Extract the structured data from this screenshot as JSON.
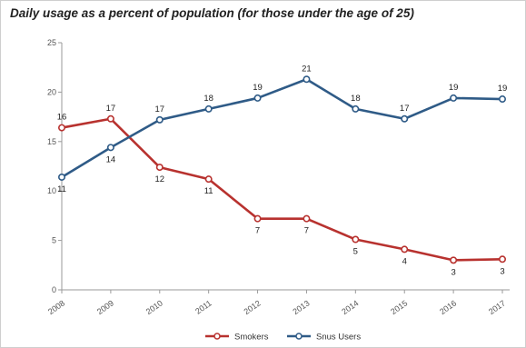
{
  "chart_data": {
    "type": "line",
    "title": "Daily usage as a percent of population (for those under the age of 25)",
    "x": [
      "2008",
      "2009",
      "2010",
      "2011",
      "2012",
      "2013",
      "2014",
      "2015",
      "2016",
      "2017"
    ],
    "ylim": [
      0,
      25
    ],
    "yticks": [
      0,
      5,
      10,
      15,
      20,
      25
    ],
    "grid": false,
    "legend_position": "bottom-center",
    "series": [
      {
        "name": "Smokers",
        "color": "#b8322f",
        "values": [
          16.4,
          17.3,
          12.4,
          11.2,
          7.2,
          7.2,
          5.1,
          4.1,
          3.0,
          3.1
        ],
        "labels": [
          "16",
          "17",
          "12",
          "11",
          "7",
          "7",
          "5",
          "4",
          "3",
          "3"
        ]
      },
      {
        "name": "Snus Users",
        "color": "#2f5b87",
        "values": [
          11.4,
          14.4,
          17.2,
          18.3,
          19.4,
          21.3,
          18.3,
          17.3,
          19.4,
          19.3
        ],
        "labels": [
          "11",
          "14",
          "17",
          "18",
          "19",
          "21",
          "18",
          "17",
          "19",
          "19"
        ]
      }
    ]
  }
}
